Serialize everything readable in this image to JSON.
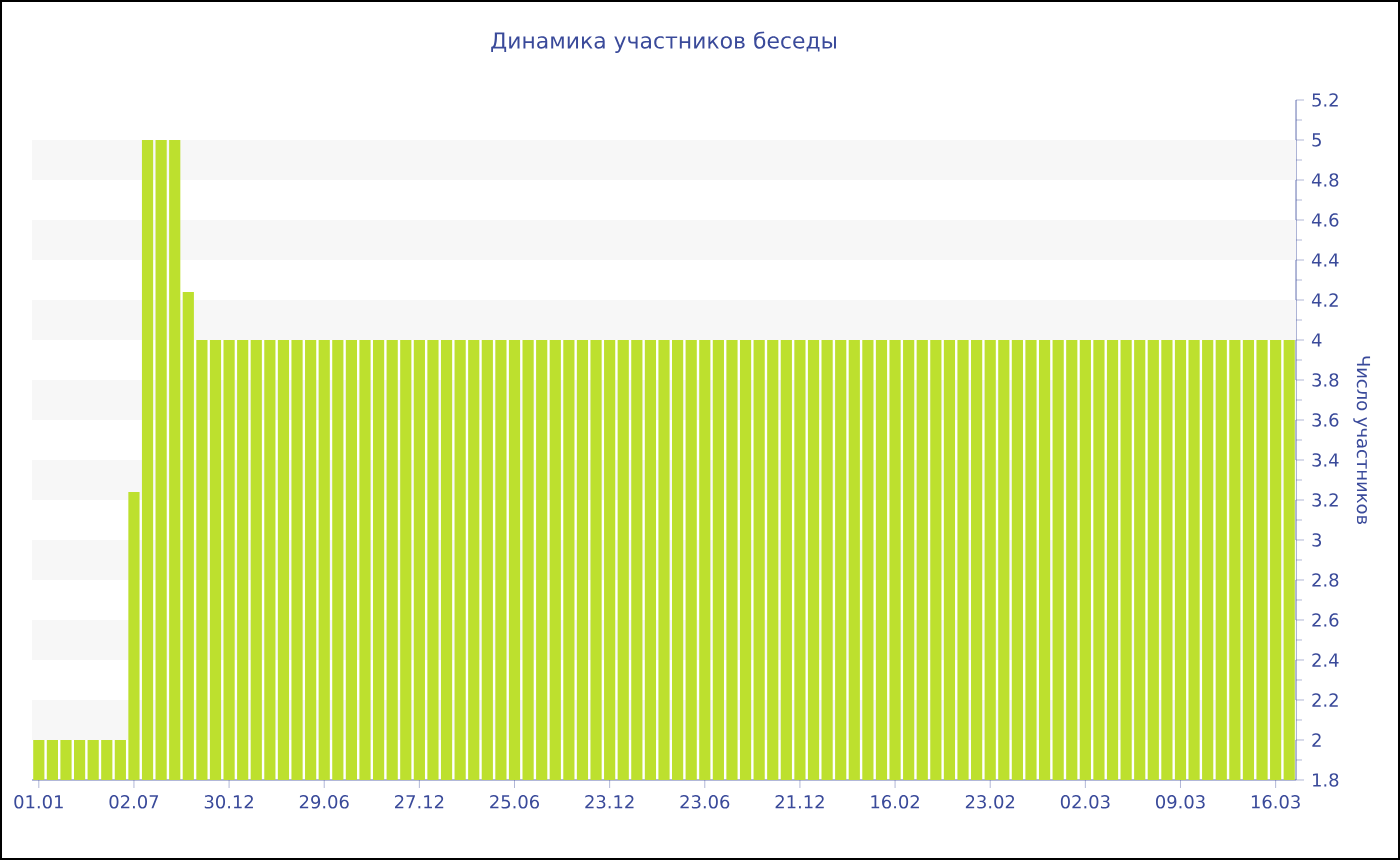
{
  "chart_data": {
    "type": "bar",
    "title": "Динамика участников беседы",
    "ylabel": "Число участников",
    "categories": [
      "01.01",
      null,
      null,
      null,
      null,
      null,
      null,
      "02.07",
      null,
      null,
      null,
      null,
      null,
      null,
      "30.12",
      null,
      null,
      null,
      null,
      null,
      null,
      "29.06",
      null,
      null,
      null,
      null,
      null,
      null,
      "27.12",
      null,
      null,
      null,
      null,
      null,
      null,
      "25.06",
      null,
      null,
      null,
      null,
      null,
      null,
      "23.12",
      null,
      null,
      null,
      null,
      null,
      null,
      "23.06",
      null,
      null,
      null,
      null,
      null,
      null,
      "21.12",
      null,
      null,
      null,
      null,
      null,
      null,
      "16.02",
      null,
      null,
      null,
      null,
      null,
      null,
      "23.02",
      null,
      null,
      null,
      null,
      null,
      null,
      "02.03",
      null,
      null,
      null,
      null,
      null,
      null,
      "09.03",
      null,
      null,
      null,
      null,
      null,
      null,
      "16.03",
      null
    ],
    "values": [
      2,
      2,
      2,
      2,
      2,
      2,
      2,
      3.24,
      5,
      5,
      5,
      4.24,
      4,
      4,
      4,
      4,
      4,
      4,
      4,
      4,
      4,
      4,
      4,
      4,
      4,
      4,
      4,
      4,
      4,
      4,
      4,
      4,
      4,
      4,
      4,
      4,
      4,
      4,
      4,
      4,
      4,
      4,
      4,
      4,
      4,
      4,
      4,
      4,
      4,
      4,
      4,
      4,
      4,
      4,
      4,
      4,
      4,
      4,
      4,
      4,
      4,
      4,
      4,
      4,
      4,
      4,
      4,
      4,
      4,
      4,
      4,
      4,
      4,
      4,
      4,
      4,
      4,
      4,
      4,
      4,
      4,
      4,
      4,
      4,
      4,
      4,
      4,
      4,
      4,
      4,
      4,
      4,
      4
    ],
    "color": "#bde02e",
    "ylim": [
      1.8,
      5.2
    ],
    "yticks": [
      1.8,
      2,
      2.2,
      2.4,
      2.6,
      2.8,
      3,
      3.2,
      3.4,
      3.6,
      3.8,
      4,
      4.2,
      4.4,
      4.6,
      4.8,
      5,
      5.2
    ],
    "bands": [
      {
        "axis": "y",
        "from": 2,
        "to": 2.2,
        "color": "#f7f7f7"
      },
      {
        "axis": "y",
        "from": 2.4,
        "to": 2.6,
        "color": "#f7f7f7"
      },
      {
        "axis": "y",
        "from": 2.8,
        "to": 3,
        "color": "#f7f7f7"
      },
      {
        "axis": "y",
        "from": 3.2,
        "to": 3.4,
        "color": "#f7f7f7"
      },
      {
        "axis": "y",
        "from": 3.6,
        "to": 3.8,
        "color": "#f7f7f7"
      },
      {
        "axis": "y",
        "from": 4,
        "to": 4.2,
        "color": "#f7f7f7"
      },
      {
        "axis": "y",
        "from": 4.4,
        "to": 4.6,
        "color": "#f7f7f7"
      },
      {
        "axis": "y",
        "from": 4.8,
        "to": 5,
        "color": "#f7f7f7"
      }
    ]
  }
}
